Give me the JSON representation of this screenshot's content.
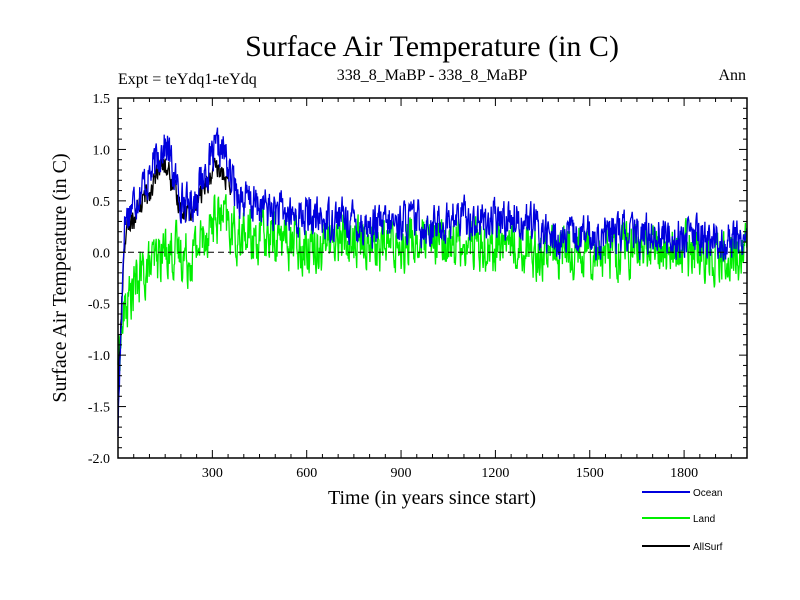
{
  "chart_data": {
    "type": "line",
    "title": "Surface Air Temperature (in C)",
    "left_caption": "Expt = teYdq1-teYdq",
    "center_caption": "338_8_MaBP - 338_8_MaBP",
    "right_caption": "Ann",
    "xlabel": "Time (in years since start)",
    "ylabel": "Surface Air Temperature (in C)",
    "xlim": [
      0,
      2000
    ],
    "ylim": [
      -2.0,
      1.5
    ],
    "x_ticks": [
      300,
      600,
      900,
      1200,
      1500,
      1800
    ],
    "x_tick_labels": [
      "300",
      "600",
      "900",
      "1200",
      "1500",
      "1800"
    ],
    "y_ticks": [
      -2.0,
      -1.5,
      -1.0,
      -0.5,
      0.0,
      0.5,
      1.0,
      1.5
    ],
    "y_tick_labels": [
      "-2.0",
      "-1.5",
      "-1.0",
      "-0.5",
      "0.0",
      "0.5",
      "1.0",
      "1.5"
    ],
    "zero_line": 0.0,
    "legend_position": "bottom-right",
    "series": [
      {
        "name": "Ocean",
        "color": "#0000dd",
        "x": [
          0,
          20,
          40,
          60,
          80,
          100,
          120,
          140,
          160,
          180,
          200,
          220,
          240,
          260,
          280,
          300,
          320,
          340,
          360,
          380,
          400,
          450,
          500,
          550,
          600,
          650,
          700,
          750,
          800,
          850,
          900,
          950,
          1000,
          1050,
          1100,
          1150,
          1200,
          1250,
          1300,
          1350,
          1400,
          1450,
          1500,
          1550,
          1600,
          1650,
          1700,
          1750,
          1800,
          1850,
          1900,
          1950,
          2000
        ],
        "values": [
          -1.7,
          0.3,
          0.45,
          0.55,
          0.65,
          0.75,
          0.85,
          1.05,
          1.0,
          0.7,
          0.55,
          0.45,
          0.5,
          0.65,
          0.8,
          0.9,
          1.0,
          0.95,
          0.7,
          0.6,
          0.5,
          0.45,
          0.4,
          0.35,
          0.35,
          0.3,
          0.35,
          0.3,
          0.25,
          0.25,
          0.3,
          0.3,
          0.25,
          0.3,
          0.35,
          0.3,
          0.3,
          0.35,
          0.3,
          0.2,
          0.1,
          0.15,
          0.15,
          0.15,
          0.2,
          0.15,
          0.2,
          0.15,
          0.15,
          0.15,
          0.1,
          0.1,
          0.15
        ]
      },
      {
        "name": "Land",
        "color": "#00ee00",
        "x": [
          0,
          20,
          40,
          60,
          80,
          100,
          120,
          140,
          160,
          180,
          200,
          220,
          240,
          260,
          280,
          300,
          320,
          340,
          360,
          380,
          400,
          450,
          500,
          550,
          600,
          650,
          700,
          750,
          800,
          850,
          900,
          950,
          1000,
          1050,
          1100,
          1150,
          1200,
          1250,
          1300,
          1350,
          1400,
          1450,
          1500,
          1550,
          1600,
          1650,
          1700,
          1750,
          1800,
          1850,
          1900,
          1950,
          2000
        ],
        "values": [
          -1.0,
          -0.6,
          -0.4,
          -0.3,
          -0.2,
          -0.15,
          -0.1,
          0.0,
          0.05,
          0.0,
          0.0,
          -0.05,
          0.0,
          0.1,
          0.2,
          0.3,
          0.35,
          0.3,
          0.2,
          0.15,
          0.15,
          0.15,
          0.15,
          0.1,
          0.1,
          0.1,
          0.15,
          0.1,
          0.1,
          0.05,
          0.1,
          0.1,
          0.05,
          0.1,
          0.1,
          0.1,
          0.05,
          0.1,
          0.05,
          0.0,
          0.0,
          0.05,
          0.05,
          0.0,
          0.05,
          0.0,
          0.05,
          0.0,
          0.0,
          0.0,
          0.0,
          -0.05,
          0.0
        ]
      },
      {
        "name": "AllSurf",
        "color": "#000000",
        "x": [
          0,
          20,
          40,
          60,
          80,
          100,
          120,
          140,
          160,
          180,
          200,
          220,
          240,
          260,
          280,
          300,
          320,
          340,
          360
        ],
        "values": [
          -1.4,
          0.1,
          0.3,
          0.4,
          0.5,
          0.6,
          0.7,
          0.85,
          0.8,
          0.55,
          0.45,
          0.4,
          0.45,
          0.55,
          0.65,
          0.75,
          0.8,
          0.75,
          0.5
        ]
      }
    ]
  }
}
